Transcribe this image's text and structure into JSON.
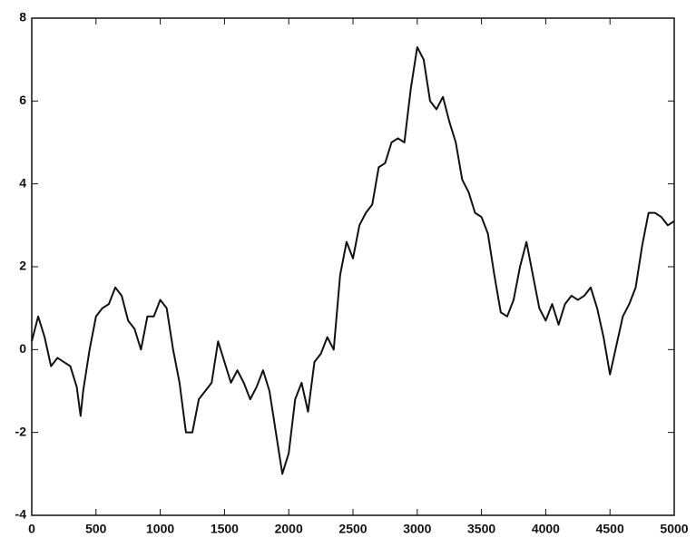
{
  "chart_data": {
    "type": "line",
    "x": [
      0,
      50,
      100,
      150,
      200,
      250,
      300,
      350,
      380,
      400,
      450,
      500,
      550,
      600,
      650,
      700,
      750,
      800,
      850,
      900,
      950,
      1000,
      1050,
      1100,
      1150,
      1200,
      1250,
      1300,
      1350,
      1400,
      1450,
      1500,
      1550,
      1600,
      1650,
      1700,
      1750,
      1800,
      1850,
      1900,
      1950,
      2000,
      2050,
      2100,
      2150,
      2200,
      2250,
      2300,
      2350,
      2400,
      2450,
      2500,
      2550,
      2600,
      2650,
      2700,
      2750,
      2800,
      2850,
      2900,
      2950,
      3000,
      3050,
      3100,
      3150,
      3200,
      3250,
      3300,
      3350,
      3400,
      3450,
      3500,
      3550,
      3600,
      3650,
      3700,
      3750,
      3800,
      3850,
      3900,
      3950,
      4000,
      4050,
      4100,
      4150,
      4200,
      4250,
      4300,
      4350,
      4400,
      4450,
      4500,
      4550,
      4600,
      4650,
      4700,
      4750,
      4800,
      4850,
      4900,
      4950,
      5000
    ],
    "series": [
      {
        "color": "#111111",
        "values": [
          0.2,
          0.8,
          0.3,
          -0.4,
          -0.2,
          -0.3,
          -0.4,
          -0.9,
          -1.6,
          -1.0,
          0.0,
          0.8,
          1.0,
          1.1,
          1.5,
          1.3,
          0.7,
          0.5,
          0.0,
          0.8,
          0.8,
          1.2,
          1.0,
          0.0,
          -0.8,
          -2.0,
          -2.0,
          -1.2,
          -1.0,
          -0.8,
          0.2,
          -0.3,
          -0.8,
          -0.5,
          -0.8,
          -1.2,
          -0.9,
          -0.5,
          -1.0,
          -2.0,
          -3.0,
          -2.5,
          -1.2,
          -0.8,
          -1.5,
          -0.3,
          -0.1,
          0.3,
          0.0,
          1.8,
          2.6,
          2.2,
          3.0,
          3.3,
          3.5,
          4.4,
          4.5,
          5.0,
          5.1,
          5.0,
          6.3,
          7.3,
          7.0,
          6.0,
          5.8,
          6.1,
          5.5,
          5.0,
          4.1,
          3.8,
          3.3,
          3.2,
          2.8,
          1.8,
          0.9,
          0.8,
          1.2,
          2.0,
          2.6,
          1.8,
          1.0,
          0.7,
          1.1,
          0.6,
          1.1,
          1.3,
          1.2,
          1.3,
          1.5,
          1.0,
          0.3,
          -0.6,
          0.1,
          0.8,
          1.1,
          1.5,
          2.5,
          3.3,
          3.3,
          3.2,
          3.0,
          3.1
        ]
      }
    ],
    "xlim": [
      0,
      5000
    ],
    "xticks": [
      0,
      500,
      1000,
      1500,
      2000,
      2500,
      3000,
      3500,
      4000,
      4500,
      5000
    ],
    "ylim": [
      -4,
      8
    ],
    "yticks": [
      -4,
      -2,
      0,
      2,
      4,
      6,
      8
    ],
    "grid": false
  }
}
